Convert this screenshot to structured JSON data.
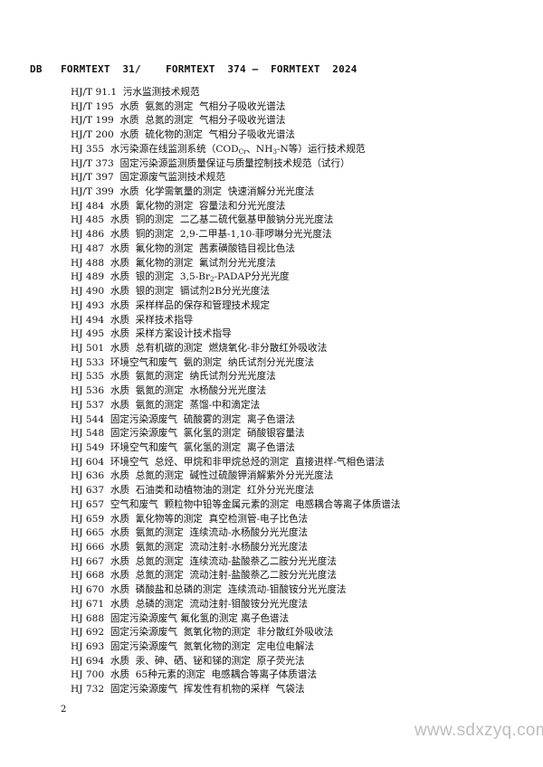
{
  "header": "DB   FORMTEXT  31/    FORMTEXT  374 —  FORMTEXT  2024",
  "rows": [
    {
      "code": "HJ/T 91.1",
      "text": [
        "  污水监测技术规范"
      ]
    },
    {
      "code": "HJ/T 195",
      "text": [
        "  水质  氨氮的测定  气相分子吸收光谱法"
      ]
    },
    {
      "code": "HJ/T 199",
      "text": [
        "  水质  总氮的测定  气相分子吸收光谱法"
      ]
    },
    {
      "code": "HJ/T 200",
      "text": [
        "  水质  硫化物的测定  气相分子吸收光谱法"
      ]
    },
    {
      "code": "HJ 355",
      "text": [
        "  水污染源在线监测系统（COD",
        {
          "sub": "Cr"
        },
        "、NH",
        {
          "sub": "3"
        },
        "-N等）运行技术规范"
      ]
    },
    {
      "code": "HJ/T 373",
      "text": [
        "  固定污染源监测质量保证与质量控制技术规范（试行）"
      ]
    },
    {
      "code": "HJ/T 397",
      "text": [
        "  固定源废气监测技术规范"
      ]
    },
    {
      "code": "HJ/T 399",
      "text": [
        "  水质  化学需氧量的测定  快速消解分光光度法"
      ]
    },
    {
      "code": "HJ 484",
      "text": [
        "  水质  氰化物的测定  容量法和分光光度法"
      ]
    },
    {
      "code": "HJ 485",
      "text": [
        "  水质  铜的测定  二乙基二硫代氨基甲酸钠分光光度法"
      ]
    },
    {
      "code": "HJ 486",
      "text": [
        "  水质  铜的测定  2,9-二甲基-1,10-菲啰啉分光光度法"
      ]
    },
    {
      "code": "HJ 487",
      "text": [
        "  水质  氟化物的测定  茜素磺酸锆目视比色法"
      ]
    },
    {
      "code": "HJ 488",
      "text": [
        "  水质  氟化物的测定  氟试剂分光光度法"
      ]
    },
    {
      "code": "HJ 489",
      "text": [
        "  水质  银的测定  3,5-Br",
        {
          "sub": "2"
        },
        "-PADAP分光光度"
      ]
    },
    {
      "code": "HJ 490",
      "text": [
        "  水质  银的测定  镉试剂2B分光光度法"
      ]
    },
    {
      "code": "HJ 493",
      "text": [
        "  水质  采样样品的保存和管理技术规定"
      ]
    },
    {
      "code": "HJ 494",
      "text": [
        "  水质  采样技术指导"
      ]
    },
    {
      "code": "HJ 495",
      "text": [
        "  水质  采样方案设计技术指导"
      ]
    },
    {
      "code": "HJ 501",
      "text": [
        "  水质  总有机碳的测定  燃烧氧化-非分散红外吸收法"
      ]
    },
    {
      "code": "HJ 533",
      "text": [
        "  环境空气和废气  氨的测定  纳氏试剂分光光度法"
      ]
    },
    {
      "code": "HJ 535",
      "text": [
        "  水质  氨氮的测定  纳氏试剂分光光度法"
      ]
    },
    {
      "code": "HJ 536",
      "text": [
        "  水质  氨氮的测定  水杨酸分光光度法"
      ]
    },
    {
      "code": "HJ 537",
      "text": [
        "  水质  氨氮的测定  蒸馏-中和滴定法"
      ]
    },
    {
      "code": "HJ 544",
      "text": [
        "  固定污染源废气  硫酸雾的测定  离子色谱法"
      ]
    },
    {
      "code": "HJ 548",
      "text": [
        "  固定污染源废气  氯化氢的测定  硝酸银容量法"
      ]
    },
    {
      "code": "HJ 549",
      "text": [
        "  环境空气和废气  氯化氢的测定  离子色谱法"
      ]
    },
    {
      "code": "HJ 604",
      "text": [
        "  环境空气  总烃、甲烷和非甲烷总烃的测定  直接进样-气相色谱法"
      ]
    },
    {
      "code": "HJ 636",
      "text": [
        "  水质  总氮的测定  碱性过硫酸钾消解紫外分光光度法"
      ]
    },
    {
      "code": "HJ 637",
      "text": [
        "  水质  石油类和动植物油的测定  红外分光光度法"
      ]
    },
    {
      "code": "HJ 657",
      "text": [
        "  空气和废气  颗粒物中铅等金属元素的测定  电感耦合等离子体质谱法"
      ]
    },
    {
      "code": "HJ 659",
      "text": [
        "  水质  氰化物等的测定  真空检测管-电子比色法"
      ]
    },
    {
      "code": "HJ 665",
      "text": [
        "  水质  氨氮的测定  连续流动-水杨酸分光光度法"
      ]
    },
    {
      "code": "HJ 666",
      "text": [
        "  水质  氨氮的测定  流动注射-水杨酸分光光度法"
      ]
    },
    {
      "code": "HJ 667",
      "text": [
        "  水质  总氮的测定  连续流动-盐酸萘乙二胺分光光度法"
      ]
    },
    {
      "code": "HJ 668",
      "text": [
        "  水质  总氮的测定  流动注射-盐酸萘乙二胺分光光度法"
      ]
    },
    {
      "code": "HJ 670",
      "text": [
        "  水质  磷酸盐和总磷的测定  连续流动-钼酸铵分光光度法"
      ]
    },
    {
      "code": "HJ 671",
      "text": [
        "  水质  总磷的测定  流动注射-钼酸铵分光光度法"
      ]
    },
    {
      "code": "HJ 688",
      "text": [
        "  固定污染源废气 氟化氢的测定 离子色谱法"
      ]
    },
    {
      "code": "HJ 692",
      "text": [
        "  固定污染源废气  氮氧化物的测定  非分散红外吸收法"
      ]
    },
    {
      "code": "HJ 693",
      "text": [
        "  固定污染源废气  氮氧化物的测定  定电位电解法"
      ]
    },
    {
      "code": "HJ 694",
      "text": [
        "  水质  汞、砷、硒、铋和锑的测定  原子荧光法"
      ]
    },
    {
      "code": "HJ 700",
      "text": [
        "  水质  65种元素的测定  电感耦合等离子体质谱法"
      ]
    },
    {
      "code": "HJ 732",
      "text": [
        "  固定污染源废气  挥发性有机物的采样  气袋法"
      ]
    }
  ],
  "page_number": "2",
  "watermark": "www.sdxzyq.com"
}
